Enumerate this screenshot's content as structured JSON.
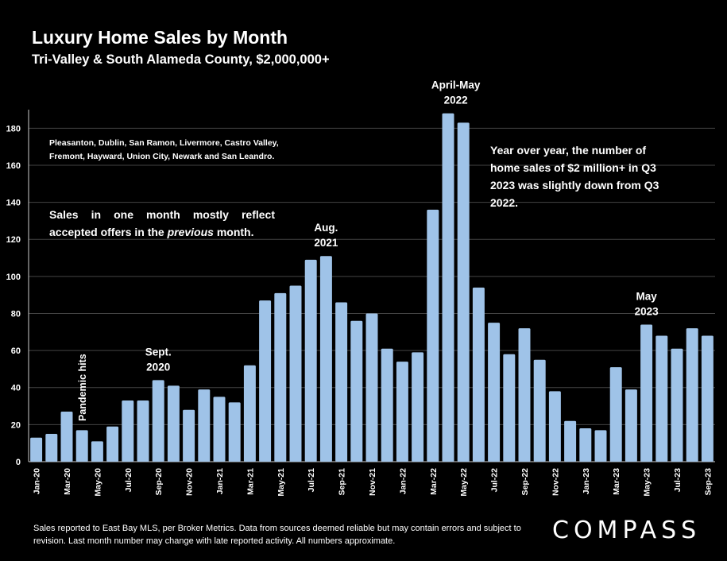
{
  "title": "Luxury Home Sales by Month",
  "subtitle": "Tri-Valley & South Alameda County, $2,000,000+",
  "notes": {
    "cities": "Pleasanton, Dublin, San Ramon, Livermore, Castro Valley, Fremont, Hayward, Union City, Newark and San Leandro.",
    "offers_prefix": "Sales in one month mostly reflect accepted offers in the ",
    "offers_emph": "previous",
    "offers_suffix": " month.",
    "yoy": "Year over year, the number of home sales of $2 million+ in Q3 2023 was slightly down from Q3 2022."
  },
  "footer": "Sales reported to East Bay MLS, per Broker Metrics. Data from sources deemed reliable but may contain errors and subject to revision. Last month number may change with late reported activity. All numbers approximate.",
  "logo": "COMPASS",
  "colors": {
    "bar": "#9fc3e8",
    "background": "#000000",
    "grid": "#444444",
    "text": "#ffffff"
  },
  "chart_data": {
    "type": "bar",
    "categories": [
      "Jan-20",
      "Feb-20",
      "Mar-20",
      "Apr-20",
      "May-20",
      "Jun-20",
      "Jul-20",
      "Aug-20",
      "Sep-20",
      "Oct-20",
      "Nov-20",
      "Dec-20",
      "Jan-21",
      "Feb-21",
      "Mar-21",
      "Apr-21",
      "May-21",
      "Jun-21",
      "Jul-21",
      "Aug-21",
      "Sep-21",
      "Oct-21",
      "Nov-21",
      "Dec-21",
      "Jan-22",
      "Feb-22",
      "Mar-22",
      "Apr-22",
      "May-22",
      "Jun-22",
      "Jul-22",
      "Aug-22",
      "Sep-22",
      "Oct-22",
      "Nov-22",
      "Dec-22",
      "Jan-23",
      "Feb-23",
      "Mar-23",
      "Apr-23",
      "May-23",
      "Jun-23",
      "Jul-23",
      "Aug-23",
      "Sep-23"
    ],
    "x_tick_labels": [
      "Jan-20",
      "",
      "Mar-20",
      "",
      "May-20",
      "",
      "Jul-20",
      "",
      "Sep-20",
      "",
      "Nov-20",
      "",
      "Jan-21",
      "",
      "Mar-21",
      "",
      "May-21",
      "",
      "Jul-21",
      "",
      "Sep-21",
      "",
      "Nov-21",
      "",
      "Jan-22",
      "",
      "Mar-22",
      "",
      "May-22",
      "",
      "Jul-22",
      "",
      "Sep-22",
      "",
      "Nov-22",
      "",
      "Jan-23",
      "",
      "Mar-23",
      "",
      "May-23",
      "",
      "Jul-23",
      "",
      "Sep-23"
    ],
    "values": [
      13,
      15,
      27,
      17,
      11,
      19,
      33,
      33,
      44,
      41,
      28,
      39,
      35,
      32,
      52,
      87,
      91,
      95,
      109,
      111,
      86,
      76,
      80,
      61,
      54,
      59,
      136,
      188,
      183,
      94,
      75,
      58,
      72,
      55,
      38,
      22,
      18,
      17,
      51,
      39,
      74,
      68,
      61,
      72,
      68
    ],
    "ylim": [
      0,
      190
    ],
    "yticks": [
      0,
      20,
      40,
      60,
      80,
      100,
      120,
      140,
      160,
      180
    ],
    "grid": true,
    "annotations": [
      {
        "text": "Pandemic hits",
        "index": 3,
        "rotated": true
      },
      {
        "text": "Sept.|2020",
        "index": 8
      },
      {
        "text": "Aug.|2021",
        "index": 19
      },
      {
        "text": "April-May|2022",
        "index": 27.5
      },
      {
        "text": "May|2023",
        "index": 40
      }
    ]
  }
}
